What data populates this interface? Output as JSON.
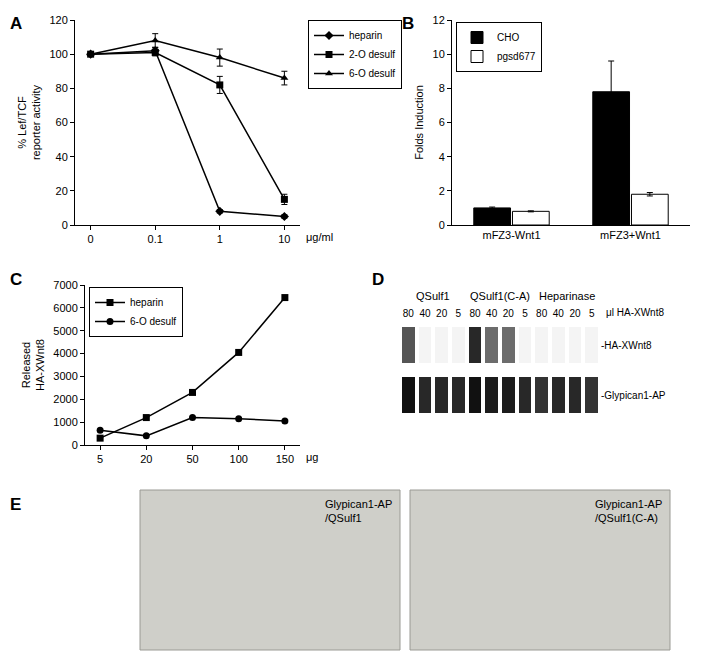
{
  "chart_data": [
    {
      "panel": "A",
      "type": "line",
      "categories": [
        "0",
        "0.1",
        "1",
        "10"
      ],
      "xlabel": "μg/ml",
      "ylabel": [
        "% Lef/TCF",
        "reporter activity"
      ],
      "ylim": [
        0,
        120
      ],
      "yticks": [
        0,
        20,
        40,
        60,
        80,
        100,
        120
      ],
      "legend": "right",
      "series": [
        {
          "name": "heparin",
          "color": "#000000",
          "marker": "diamond",
          "values": [
            100,
            102,
            8,
            5
          ],
          "errors": [
            0,
            2,
            1,
            1
          ]
        },
        {
          "name": "2-O desulf",
          "color": "#000000",
          "marker": "square",
          "values": [
            100,
            101,
            82,
            15
          ],
          "errors": [
            0,
            2,
            5,
            3
          ]
        },
        {
          "name": "6-O desulf",
          "color": "#000000",
          "marker": "triangle-up",
          "values": [
            100,
            108,
            98,
            86
          ],
          "errors": [
            0,
            4,
            5,
            4
          ]
        }
      ]
    },
    {
      "panel": "B",
      "type": "bar",
      "categories": [
        "mFZ3-Wnt1",
        "mFZ3+Wnt1"
      ],
      "ylabel": "Folds Induction",
      "ylim": [
        0,
        12
      ],
      "yticks": [
        0,
        2,
        4,
        6,
        8,
        10,
        12
      ],
      "legend": "upper left",
      "series": [
        {
          "name": "CHO",
          "color": "#000000",
          "values": [
            1.0,
            7.8
          ],
          "errors": [
            0.05,
            1.8
          ]
        },
        {
          "name": "pgsd677",
          "color": "#ffffff",
          "values": [
            0.8,
            1.8
          ],
          "errors": [
            0.03,
            0.1
          ]
        }
      ]
    },
    {
      "panel": "C",
      "type": "line",
      "categories": [
        "5",
        "20",
        "50",
        "100",
        "150"
      ],
      "xlabel": "μg",
      "ylabel": [
        "Released",
        "HA-XWnt8"
      ],
      "ylim": [
        0,
        7000
      ],
      "yticks": [
        0,
        1000,
        2000,
        3000,
        4000,
        5000,
        6000,
        7000
      ],
      "legend": "upper left",
      "series": [
        {
          "name": "heparin",
          "color": "#000000",
          "marker": "square",
          "values": [
            300,
            1200,
            2300,
            4050,
            6450
          ]
        },
        {
          "name": "6-O desulf",
          "color": "#000000",
          "marker": "circle",
          "values": [
            650,
            400,
            1200,
            1150,
            1050
          ]
        }
      ]
    },
    {
      "panel": "D",
      "type": "blot",
      "groups": [
        {
          "name": "QSulf1",
          "amounts": [
            80,
            40,
            20,
            5
          ]
        },
        {
          "name": "QSulf1(C-A)",
          "amounts": [
            80,
            40,
            20,
            5
          ]
        },
        {
          "name": "Heparinase",
          "amounts": [
            80,
            40,
            20,
            5
          ]
        }
      ],
      "amount_label": "μl HA-XWnt8",
      "zlim": [
        0,
        1
      ],
      "rows": [
        {
          "label": "-HA-XWnt8",
          "intensity": [
            0.7,
            0,
            0,
            0,
            0.9,
            0.6,
            0.6,
            0,
            0,
            0,
            0,
            0
          ]
        },
        {
          "label": "-Glypican1-AP",
          "intensity": [
            1,
            0.9,
            0.9,
            0.9,
            1,
            0.95,
            0.95,
            0.9,
            0.85,
            0.9,
            0.9,
            0.85
          ]
        }
      ]
    },
    {
      "panel": "E",
      "type": "image",
      "images": [
        {
          "label": [
            "Glypican1-AP",
            "/QSulf1"
          ]
        },
        {
          "label": [
            "Glypican1-AP",
            "/QSulf1(C-A)"
          ]
        }
      ]
    }
  ]
}
